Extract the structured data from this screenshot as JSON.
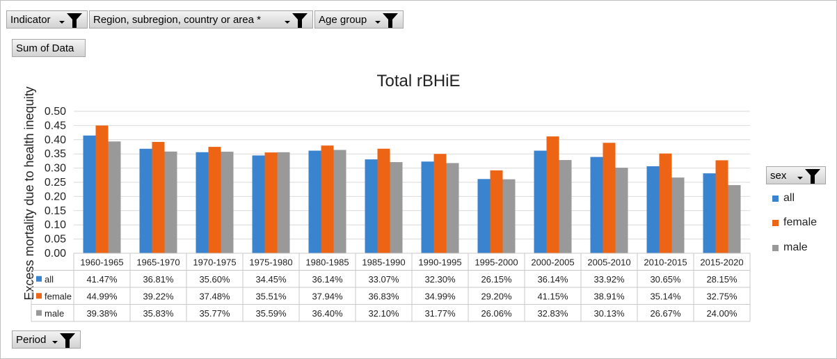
{
  "filters": {
    "indicator": "Indicator",
    "region": "Region, subregion, country or area *",
    "age_group": "Age group",
    "sum_of_data": "Sum of Data",
    "sex": "sex",
    "period": "Period"
  },
  "colors": {
    "all": "#3a83cf",
    "female": "#ec6414",
    "male": "#999999",
    "grid": "#d9d9d9"
  },
  "chart_data": {
    "type": "bar",
    "title": "Total rBHiE",
    "ylabel": "Excess mortality due to health inequity",
    "xlabel": "",
    "ylim": [
      0,
      0.5
    ],
    "yticks": [
      "0.00",
      "0.05",
      "0.10",
      "0.15",
      "0.20",
      "0.25",
      "0.30",
      "0.35",
      "0.40",
      "0.45",
      "0.50"
    ],
    "grid": true,
    "legend_position": "right",
    "categories": [
      "1960-1965",
      "1965-1970",
      "1970-1975",
      "1975-1980",
      "1980-1985",
      "1985-1990",
      "1990-1995",
      "1995-2000",
      "2000-2005",
      "2005-2010",
      "2010-2015",
      "2015-2020"
    ],
    "series": [
      {
        "name": "all",
        "values": [
          0.4147,
          0.3681,
          0.356,
          0.3445,
          0.3614,
          0.3307,
          0.323,
          0.2615,
          0.3614,
          0.3392,
          0.3065,
          0.2815
        ],
        "labels": [
          "41.47%",
          "36.81%",
          "35.60%",
          "34.45%",
          "36.14%",
          "33.07%",
          "32.30%",
          "26.15%",
          "36.14%",
          "33.92%",
          "30.65%",
          "28.15%"
        ]
      },
      {
        "name": "female",
        "values": [
          0.4499,
          0.3922,
          0.3748,
          0.3551,
          0.3794,
          0.3683,
          0.3499,
          0.292,
          0.4115,
          0.3891,
          0.3514,
          0.3275
        ],
        "labels": [
          "44.99%",
          "39.22%",
          "37.48%",
          "35.51%",
          "37.94%",
          "36.83%",
          "34.99%",
          "29.20%",
          "41.15%",
          "38.91%",
          "35.14%",
          "32.75%"
        ]
      },
      {
        "name": "male",
        "values": [
          0.3938,
          0.3583,
          0.3577,
          0.3559,
          0.364,
          0.321,
          0.3177,
          0.2606,
          0.3283,
          0.3013,
          0.2667,
          0.24
        ],
        "labels": [
          "39.38%",
          "35.83%",
          "35.77%",
          "35.59%",
          "36.40%",
          "32.10%",
          "31.77%",
          "26.06%",
          "32.83%",
          "30.13%",
          "26.67%",
          "24.00%"
        ]
      }
    ]
  }
}
